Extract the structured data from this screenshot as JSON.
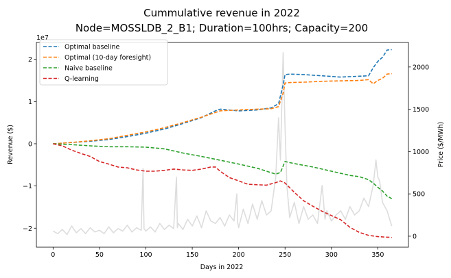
{
  "chart_data": {
    "type": "line",
    "title_line1": "Cummulative revenue in 2022",
    "title_line2": "Node=MOSSLDB_2_B1; Duration=100hrs; Capacity=200",
    "xlabel": "Days in 2022",
    "ylabel_left": "Revenue ($)",
    "ylabel_right": "Price ($/MWh)",
    "left_axis_multiplier": "1e7",
    "xlim": [
      -18,
      383
    ],
    "ylim_left": [
      -2.45,
      2.4
    ],
    "ylim_right": [
      -130,
      2290
    ],
    "xticks": [
      0,
      50,
      100,
      150,
      200,
      250,
      300,
      350
    ],
    "yticks_left": [
      -2,
      -1,
      0,
      1,
      2
    ],
    "yticks_right": [
      0,
      500,
      1000,
      1500,
      2000
    ],
    "legend_location": "upper-left",
    "series": [
      {
        "name": "Optimal baseline",
        "color": "#1f77b4",
        "x": [
          0,
          20,
          40,
          60,
          80,
          100,
          120,
          140,
          160,
          175,
          180,
          200,
          220,
          235,
          243,
          248,
          250,
          255,
          270,
          290,
          310,
          330,
          340,
          345,
          350,
          355,
          360,
          365
        ],
        "y": [
          0,
          0.03,
          0.06,
          0.1,
          0.17,
          0.25,
          0.35,
          0.48,
          0.62,
          0.78,
          0.82,
          0.78,
          0.8,
          0.85,
          0.95,
          1.4,
          1.64,
          1.65,
          1.64,
          1.61,
          1.58,
          1.6,
          1.61,
          1.8,
          1.95,
          2.05,
          2.22,
          2.23
        ]
      },
      {
        "name": "Optimal (10-day foresight)",
        "color": "#ff7f0e",
        "x": [
          0,
          20,
          40,
          60,
          80,
          100,
          120,
          140,
          160,
          175,
          180,
          200,
          220,
          235,
          243,
          248,
          250,
          255,
          270,
          290,
          310,
          330,
          340,
          345,
          350,
          355,
          360,
          365
        ],
        "y": [
          0,
          0.03,
          0.07,
          0.12,
          0.2,
          0.28,
          0.38,
          0.5,
          0.63,
          0.74,
          0.78,
          0.8,
          0.82,
          0.83,
          0.88,
          1.2,
          1.44,
          1.45,
          1.46,
          1.48,
          1.49,
          1.5,
          1.52,
          1.42,
          1.5,
          1.55,
          1.65,
          1.66
        ]
      },
      {
        "name": "Naive baseline",
        "color": "#2ca02c",
        "x": [
          0,
          20,
          40,
          60,
          80,
          100,
          120,
          140,
          160,
          180,
          200,
          220,
          240,
          245,
          250,
          260,
          280,
          300,
          320,
          330,
          340,
          345,
          350,
          355,
          360,
          365
        ],
        "y": [
          0,
          -0.02,
          -0.05,
          -0.07,
          -0.07,
          -0.08,
          -0.12,
          -0.22,
          -0.3,
          -0.39,
          -0.48,
          -0.58,
          -0.72,
          -0.68,
          -0.42,
          -0.47,
          -0.55,
          -0.65,
          -0.75,
          -0.78,
          -0.85,
          -0.93,
          -1.03,
          -1.12,
          -1.24,
          -1.3
        ]
      },
      {
        "name": "Q-learning",
        "color": "#d62728",
        "x": [
          0,
          10,
          20,
          30,
          40,
          50,
          60,
          70,
          80,
          90,
          100,
          110,
          120,
          130,
          140,
          150,
          160,
          170,
          175,
          180,
          190,
          200,
          210,
          220,
          230,
          240,
          245,
          250,
          260,
          270,
          280,
          290,
          300,
          310,
          320,
          330,
          340,
          350,
          365
        ],
        "y": [
          0,
          -0.05,
          -0.15,
          -0.23,
          -0.3,
          -0.42,
          -0.48,
          -0.55,
          -0.57,
          -0.62,
          -0.65,
          -0.65,
          -0.63,
          -0.6,
          -0.62,
          -0.63,
          -0.6,
          -0.55,
          -0.55,
          -0.65,
          -0.8,
          -0.88,
          -0.96,
          -0.97,
          -0.98,
          -0.92,
          -0.88,
          -0.93,
          -1.15,
          -1.35,
          -1.48,
          -1.6,
          -1.7,
          -1.8,
          -1.98,
          -2.1,
          -2.17,
          -2.2,
          -2.22
        ]
      }
    ],
    "price_series": {
      "color": "#dddddd",
      "axis": "right",
      "x": [
        0,
        5,
        10,
        15,
        20,
        25,
        30,
        35,
        40,
        45,
        50,
        55,
        60,
        65,
        70,
        75,
        80,
        85,
        90,
        95,
        97,
        98,
        100,
        105,
        110,
        115,
        120,
        125,
        130,
        133,
        134,
        135,
        140,
        145,
        150,
        155,
        160,
        165,
        170,
        175,
        180,
        185,
        190,
        195,
        198,
        199,
        200,
        205,
        210,
        215,
        220,
        225,
        230,
        235,
        240,
        243,
        245,
        248,
        250,
        252,
        255,
        260,
        265,
        270,
        275,
        280,
        285,
        290,
        293,
        295,
        300,
        305,
        310,
        315,
        320,
        325,
        330,
        335,
        340,
        345,
        348,
        350,
        352,
        355,
        360,
        365
      ],
      "y": [
        60,
        30,
        80,
        20,
        120,
        40,
        90,
        30,
        100,
        50,
        70,
        30,
        110,
        40,
        90,
        60,
        130,
        50,
        100,
        70,
        800,
        90,
        60,
        110,
        50,
        150,
        80,
        130,
        90,
        700,
        100,
        150,
        80,
        200,
        120,
        240,
        100,
        300,
        180,
        150,
        220,
        120,
        250,
        180,
        500,
        160,
        100,
        320,
        150,
        380,
        200,
        420,
        250,
        300,
        700,
        1400,
        900,
        2170,
        1300,
        600,
        220,
        400,
        150,
        350,
        200,
        250,
        150,
        600,
        200,
        300,
        180,
        250,
        300,
        200,
        350,
        250,
        300,
        450,
        350,
        600,
        900,
        700,
        650,
        400,
        300,
        120
      ]
    }
  }
}
